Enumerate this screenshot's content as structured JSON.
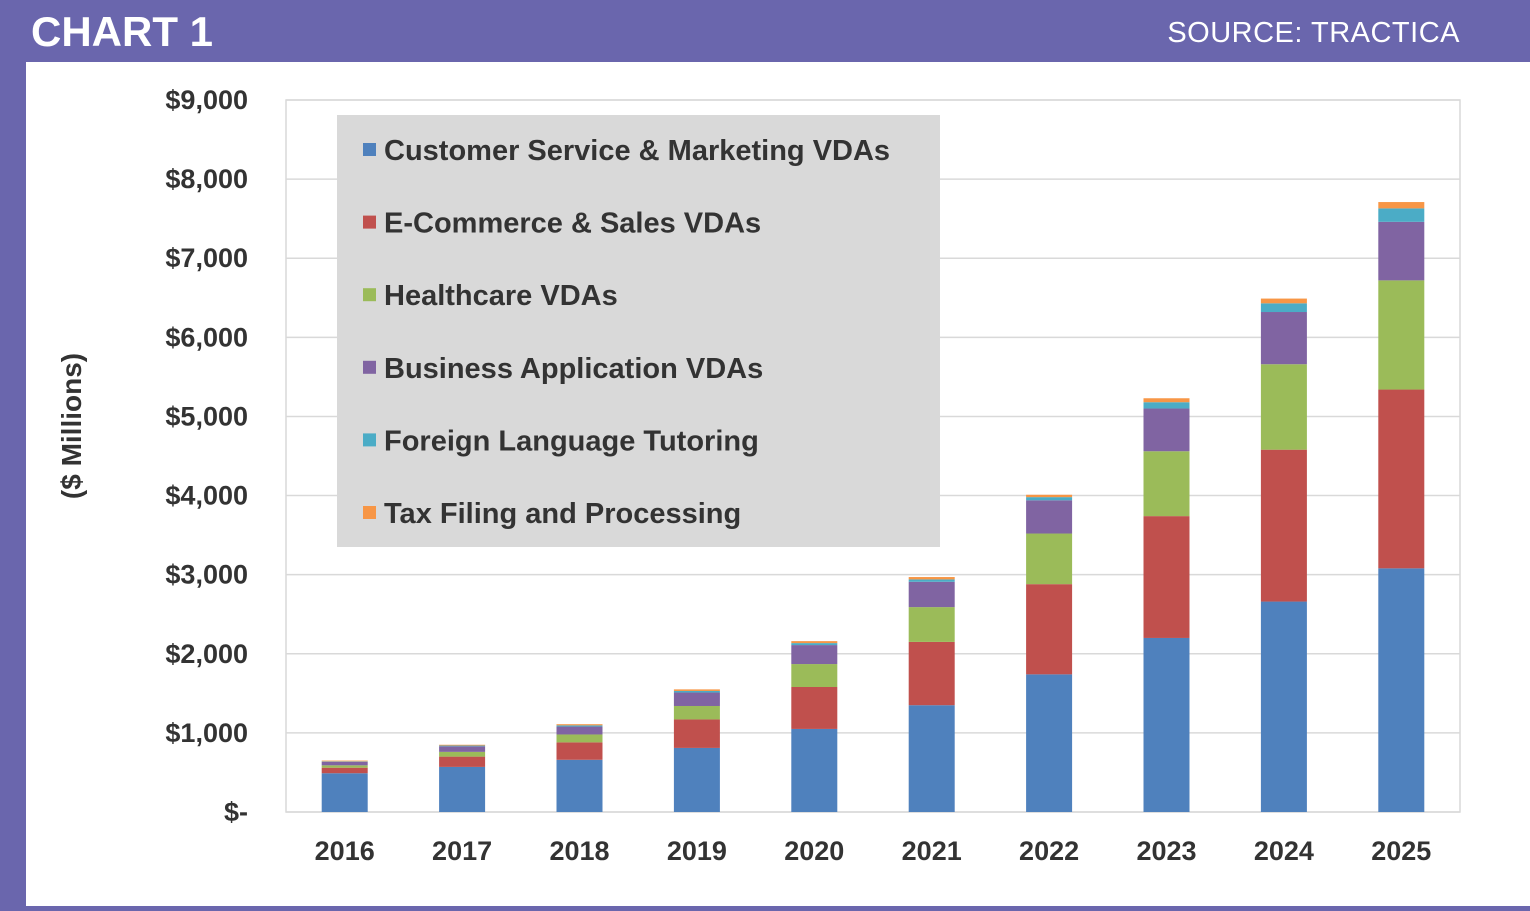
{
  "header": {
    "title": "CHART 1",
    "source": "SOURCE: TRACTICA"
  },
  "chart_data": {
    "type": "bar",
    "stacked": true,
    "categories": [
      "2016",
      "2017",
      "2018",
      "2019",
      "2020",
      "2021",
      "2022",
      "2023",
      "2024",
      "2025"
    ],
    "ylabel": "($ Millions)",
    "ylim": [
      0,
      9000
    ],
    "yticks": [
      0,
      1000,
      2000,
      3000,
      4000,
      5000,
      6000,
      7000,
      8000,
      9000
    ],
    "ytick_labels": [
      "$-",
      "$1,000",
      "$2,000",
      "$3,000",
      "$4,000",
      "$5,000",
      "$6,000",
      "$7,000",
      "$8,000",
      "$9,000"
    ],
    "grid": true,
    "legend_position": "top-left",
    "series": [
      {
        "name": "Customer Service & Marketing VDAs",
        "color": "#4f81bd",
        "values": [
          490,
          570,
          660,
          810,
          1050,
          1350,
          1740,
          2200,
          2660,
          3080
        ]
      },
      {
        "name": "E-Commerce & Sales VDAs",
        "color": "#c0504d",
        "values": [
          70,
          130,
          220,
          360,
          530,
          800,
          1140,
          1540,
          1920,
          2260
        ]
      },
      {
        "name": "Healthcare VDAs",
        "color": "#9bbb59",
        "values": [
          30,
          60,
          100,
          170,
          290,
          440,
          640,
          820,
          1080,
          1380
        ]
      },
      {
        "name": "Business Application VDAs",
        "color": "#8064a2",
        "values": [
          45,
          70,
          100,
          170,
          240,
          320,
          420,
          540,
          660,
          740
        ]
      },
      {
        "name": "Foreign Language Tutoring",
        "color": "#4bacc6",
        "values": [
          5,
          10,
          15,
          20,
          25,
          30,
          40,
          80,
          110,
          170
        ]
      },
      {
        "name": "Tax Filing and Processing",
        "color": "#f79646",
        "values": [
          10,
          10,
          15,
          20,
          25,
          30,
          30,
          50,
          60,
          80
        ]
      }
    ]
  }
}
